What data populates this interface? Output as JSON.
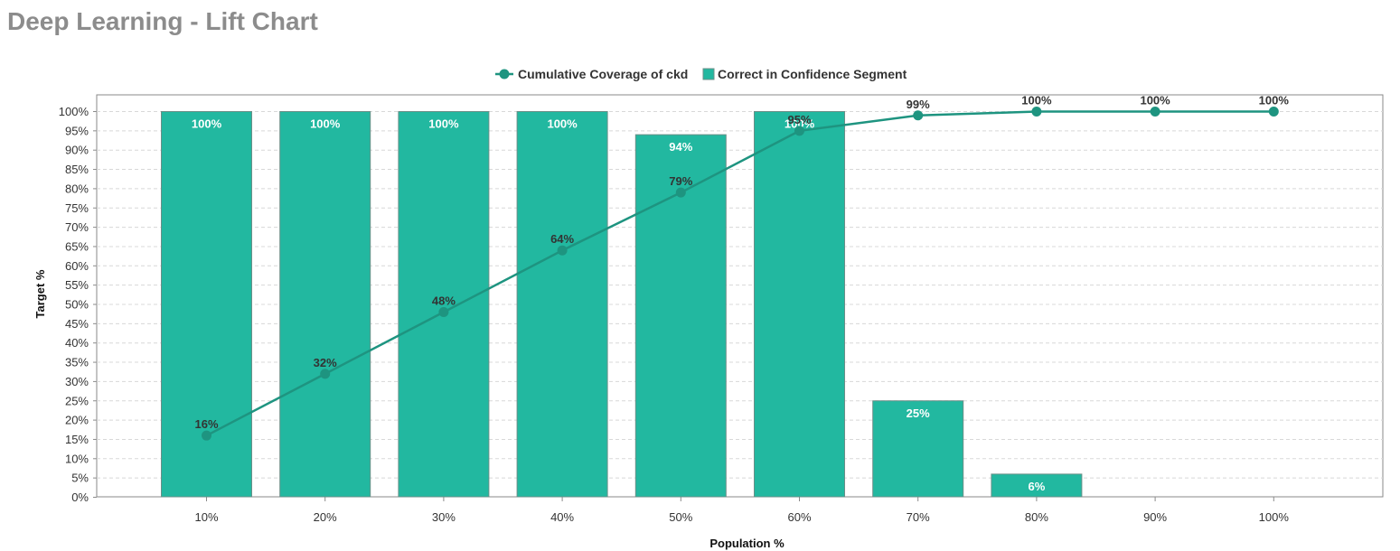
{
  "page": {
    "title": "Deep Learning - Lift Chart"
  },
  "colors": {
    "bar": "#22b8a0",
    "bar_stroke": "#6a8f88",
    "line": "#1e9480",
    "grid": "#d8d8d8",
    "title": "#8c8c8c"
  },
  "chart_data": {
    "type": "bar",
    "categories": [
      "10%",
      "20%",
      "30%",
      "40%",
      "50%",
      "60%",
      "70%",
      "80%",
      "90%",
      "100%"
    ],
    "series": [
      {
        "name": "Correct in Confidence Segment",
        "type": "bar",
        "values": [
          100,
          100,
          100,
          100,
          94,
          100,
          25,
          6,
          0,
          0
        ],
        "labels": [
          "100%",
          "100%",
          "100%",
          "100%",
          "94%",
          "100%",
          "25%",
          "6%",
          "",
          ""
        ]
      },
      {
        "name": "Cumulative Coverage of ckd",
        "type": "line",
        "values": [
          16,
          32,
          48,
          64,
          79,
          95,
          99,
          100,
          100,
          100
        ],
        "labels": [
          "16%",
          "32%",
          "48%",
          "64%",
          "79%",
          "95%",
          "99%",
          "100%",
          "100%",
          "100%"
        ]
      }
    ],
    "legend": {
      "items": [
        "Cumulative Coverage of ckd",
        "Correct in Confidence Segment"
      ],
      "position": "top"
    },
    "xlabel": "Population %",
    "ylabel": "Target %",
    "ylim": [
      0,
      100
    ],
    "yticks": [
      "0%",
      "5%",
      "10%",
      "15%",
      "20%",
      "25%",
      "30%",
      "35%",
      "40%",
      "45%",
      "50%",
      "55%",
      "60%",
      "65%",
      "70%",
      "75%",
      "80%",
      "85%",
      "90%",
      "95%",
      "100%"
    ],
    "grid": true
  }
}
